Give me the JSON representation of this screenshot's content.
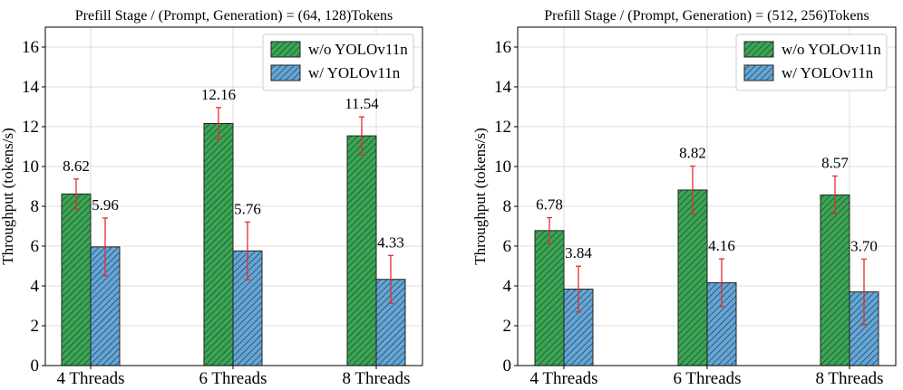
{
  "chart_data": [
    {
      "type": "bar",
      "title": "Prefill Stage / (Prompt, Generation) = (64, 128)Tokens",
      "xlabel": "",
      "ylabel": "Throughput (tokens/s)",
      "ylim": [
        0,
        17
      ],
      "yticks": [
        0,
        2,
        4,
        6,
        8,
        10,
        12,
        14,
        16
      ],
      "grid": true,
      "legend_position": "top-right",
      "categories": [
        "4 Threads",
        "6 Threads",
        "8 Threads"
      ],
      "series": [
        {
          "name": "w/o YOLOv11n",
          "color": "#3aa655",
          "hatch": "dense-diagonal",
          "values": [
            8.62,
            12.16,
            11.54
          ],
          "errors": [
            0.75,
            0.8,
            0.95
          ],
          "labels": [
            "8.62",
            "12.16",
            "11.54"
          ]
        },
        {
          "name": "w/ YOLOv11n",
          "color": "#64a6d6",
          "hatch": "dense-diagonal",
          "values": [
            5.96,
            5.76,
            4.33
          ],
          "errors": [
            1.45,
            1.45,
            1.2
          ],
          "labels": [
            "5.96",
            "5.76",
            "4.33"
          ]
        }
      ]
    },
    {
      "type": "bar",
      "title": "Prefill Stage / (Prompt, Generation) = (512, 256)Tokens",
      "xlabel": "",
      "ylabel": "Throughput (tokens/s)",
      "ylim": [
        0,
        17
      ],
      "yticks": [
        0,
        2,
        4,
        6,
        8,
        10,
        12,
        14,
        16
      ],
      "grid": true,
      "legend_position": "top-right",
      "categories": [
        "4 Threads",
        "6 Threads",
        "8 Threads"
      ],
      "series": [
        {
          "name": "w/o YOLOv11n",
          "color": "#3aa655",
          "hatch": "dense-diagonal",
          "values": [
            6.78,
            8.82,
            8.57
          ],
          "errors": [
            0.65,
            1.2,
            0.95
          ],
          "labels": [
            "6.78",
            "8.82",
            "8.57"
          ]
        },
        {
          "name": "w/ YOLOv11n",
          "color": "#64a6d6",
          "hatch": "dense-diagonal",
          "values": [
            3.84,
            4.16,
            3.7
          ],
          "errors": [
            1.15,
            1.2,
            1.65
          ],
          "labels": [
            "3.84",
            "4.16",
            "3.70"
          ]
        }
      ]
    }
  ]
}
